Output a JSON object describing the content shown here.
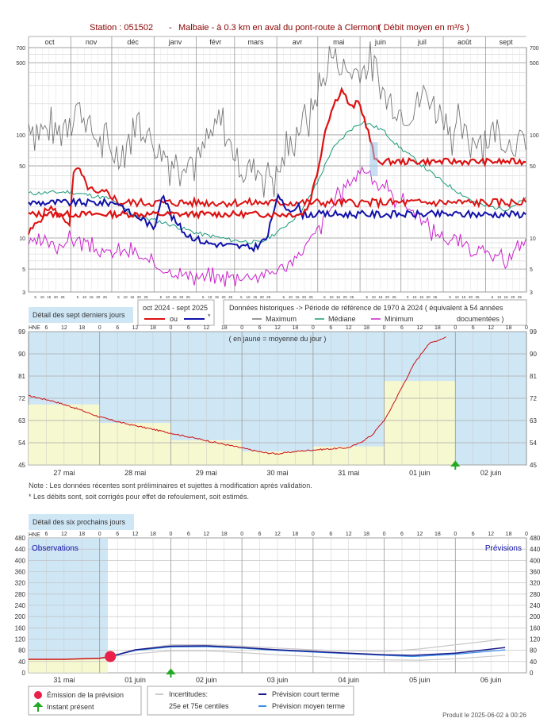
{
  "header": {
    "station": "Station : 051502",
    "sep": "-",
    "title": "Malbaie - à 0.3 km en aval du pont-route à Clermont",
    "units": "( Débit moyen en m³/s )"
  },
  "annual": {
    "months": [
      "oct",
      "nov",
      "déc",
      "janv",
      "févr",
      "mars",
      "avr",
      "mai",
      "juin",
      "juil",
      "août",
      "sept"
    ],
    "day_ticks": [
      "5",
      "10",
      "15",
      "20",
      "25"
    ],
    "y_ticks": [
      3,
      5,
      10,
      50,
      100,
      500,
      700
    ],
    "y_range": [
      3,
      700
    ],
    "scale": "log",
    "series": {
      "maximum": {
        "color": "#777777"
      },
      "mediane": {
        "color": "#1a9a7a"
      },
      "minimum": {
        "color": "#cc22cc"
      },
      "current_corrected": {
        "color": "#dd1111"
      },
      "current_estimated": {
        "color": "#1111aa"
      }
    }
  },
  "legend": {
    "box1": "Détail des sept derniers jours",
    "period": "oct 2024 - sept 2025",
    "ou": "ou",
    "star": "*",
    "hist_title": "Données historiques -> Période de référence  de 1970 à 2024  ( équivalent à 54 années",
    "hist_title2": "documentées )",
    "maximum": "Maximum",
    "mediane": "Médiane",
    "minimum": "Minimum"
  },
  "week": {
    "hne": "HNE",
    "hours": [
      "6",
      "12",
      "18",
      "0"
    ],
    "y_ticks": [
      45,
      54,
      63,
      72,
      81,
      90,
      99
    ],
    "y_range": [
      45,
      99
    ],
    "note_top": "( en jaune = moyenne du jour )",
    "days": [
      "27 mai",
      "28 mai",
      "29 mai",
      "30 mai",
      "31 mai",
      "01 juin",
      "02 juin"
    ],
    "daily_means": [
      69.5,
      62,
      55,
      50.5,
      52.5,
      79,
      null
    ]
  },
  "notes": {
    "n1": "Note : Les données récentes sont préliminaires et sujettes à modification après validation.",
    "n2": "* Les débits sont, soit corrigés pour effet de refoulement, soit estimés."
  },
  "forecast": {
    "box": "Détail des six prochains jours",
    "hne": "HNE",
    "observations": "Observations",
    "previsions": "Prévisions",
    "y_ticks": [
      0,
      40,
      80,
      120,
      160,
      200,
      240,
      280,
      320,
      360,
      400,
      440,
      480
    ],
    "y_range": [
      0,
      480
    ],
    "days": [
      "31 mai",
      "01 juin",
      "02 juin",
      "03 juin",
      "04 juin",
      "05 juin",
      "06 juin"
    ]
  },
  "fc_legend": {
    "emission": "Émission de la prévision",
    "instant": "Instant présent",
    "incert": "Incertitudes:",
    "centiles": "25e et 75e centiles",
    "court": "Prévision court terme",
    "moyen": "Prévision moyen terme"
  },
  "footer": "Produit le 2025-06-02 à 00:26",
  "chart_data": [
    {
      "type": "line",
      "title": "Station : 051502 - Malbaie - à 0.3 km en aval du pont-route à Clermont ( Débit moyen en m³/s )",
      "x": [
        "oct",
        "nov",
        "déc",
        "janv",
        "févr",
        "mars",
        "avr",
        "mai",
        "juin",
        "juil",
        "août",
        "sept"
      ],
      "y_scale": "log",
      "ylim": [
        3,
        700
      ],
      "series": [
        {
          "name": "Maximum",
          "values": [
            160,
            120,
            70,
            60,
            55,
            45,
            200,
            550,
            350,
            200,
            150,
            100
          ]
        },
        {
          "name": "Médiane",
          "values": [
            27,
            28,
            20,
            14,
            11,
            9.5,
            25,
            110,
            60,
            35,
            21,
            19
          ]
        },
        {
          "name": "Minimum",
          "values": [
            9,
            7.5,
            6,
            4.2,
            4,
            4.2,
            8,
            45,
            25,
            12,
            7.5,
            6
          ]
        }
      ]
    },
    {
      "type": "line",
      "xlabel": "",
      "x": [
        "27 mai",
        "28 mai",
        "29 mai",
        "30 mai",
        "31 mai",
        "01 juin",
        "02 juin"
      ],
      "ylim": [
        45,
        99
      ],
      "series": [
        {
          "values": [
            73,
            63,
            57,
            51,
            51,
            77,
            97
          ]
        }
      ]
    },
    {
      "type": "line",
      "x": [
        "31 mai",
        "01 juin",
        "02 juin",
        "03 juin",
        "04 juin",
        "05 juin",
        "06 juin"
      ],
      "ylim": [
        0,
        480
      ],
      "series": [
        {
          "name": "Prévision court terme",
          "values": [
            48,
            58,
            96,
            92,
            78,
            65,
            88
          ]
        },
        {
          "name": "Prévision moyen terme",
          "values": [
            48,
            58,
            96,
            92,
            76,
            60,
            80
          ]
        }
      ]
    }
  ]
}
